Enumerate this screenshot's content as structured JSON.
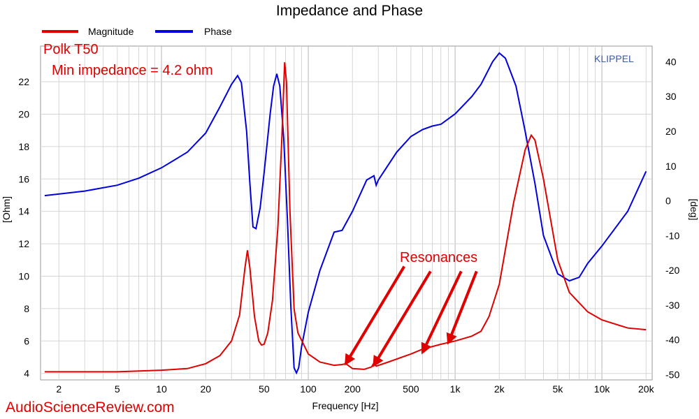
{
  "chart_data": {
    "type": "line",
    "title": "Impedance and Phase",
    "xlabel": "Frequency [Hz]",
    "ylabel_left": "[Ohm]",
    "ylabel_right": "[deg]",
    "x_scale": "log",
    "xlim": [
      1.5,
      22000
    ],
    "ylim_left": [
      3.6,
      24.2
    ],
    "ylim_right": [
      -51.5,
      44.5
    ],
    "grid": true,
    "legend_position": "top-left",
    "x_ticks": [
      {
        "value": 2,
        "label": "2"
      },
      {
        "value": 5,
        "label": "5"
      },
      {
        "value": 10,
        "label": "10"
      },
      {
        "value": 20,
        "label": "20"
      },
      {
        "value": 50,
        "label": "50"
      },
      {
        "value": 100,
        "label": "100"
      },
      {
        "value": 200,
        "label": "200"
      },
      {
        "value": 500,
        "label": "500"
      },
      {
        "value": 1000,
        "label": "1k"
      },
      {
        "value": 2000,
        "label": "2k"
      },
      {
        "value": 5000,
        "label": "5k"
      },
      {
        "value": 10000,
        "label": "10k"
      },
      {
        "value": 20000,
        "label": "20k"
      }
    ],
    "y_ticks_left": [
      {
        "value": 4,
        "label": "4"
      },
      {
        "value": 6,
        "label": "6"
      },
      {
        "value": 8,
        "label": "8"
      },
      {
        "value": 10,
        "label": "10"
      },
      {
        "value": 12,
        "label": "12"
      },
      {
        "value": 14,
        "label": "14"
      },
      {
        "value": 16,
        "label": "16"
      },
      {
        "value": 18,
        "label": "18"
      },
      {
        "value": 20,
        "label": "20"
      },
      {
        "value": 22,
        "label": "22"
      }
    ],
    "y_ticks_right": [
      {
        "value": 40,
        "label": "40"
      },
      {
        "value": 30,
        "label": "30"
      },
      {
        "value": 20,
        "label": "20"
      },
      {
        "value": 10,
        "label": "10"
      },
      {
        "value": 0,
        "label": "0"
      },
      {
        "value": -10,
        "label": "-10"
      },
      {
        "value": -20,
        "label": "-20"
      },
      {
        "value": -30,
        "label": "-30"
      },
      {
        "value": -40,
        "label": "-40"
      },
      {
        "value": -50,
        "label": "-50"
      }
    ],
    "series": [
      {
        "name": "Magnitude",
        "color": "#e00000",
        "axis": "left",
        "points": [
          [
            1.6,
            4.1
          ],
          [
            5,
            4.1
          ],
          [
            10,
            4.2
          ],
          [
            15,
            4.3
          ],
          [
            20,
            4.6
          ],
          [
            25,
            5.1
          ],
          [
            30,
            6.0
          ],
          [
            34,
            7.6
          ],
          [
            37,
            10.5
          ],
          [
            38.5,
            11.6
          ],
          [
            40,
            10.5
          ],
          [
            43,
            7.5
          ],
          [
            46,
            6.0
          ],
          [
            48,
            5.75
          ],
          [
            50,
            5.8
          ],
          [
            53,
            6.5
          ],
          [
            57,
            8.5
          ],
          [
            62,
            13.0
          ],
          [
            66,
            18.5
          ],
          [
            69,
            23.2
          ],
          [
            71,
            22.0
          ],
          [
            75,
            14.0
          ],
          [
            80,
            8.0
          ],
          [
            85,
            6.5
          ],
          [
            100,
            5.2
          ],
          [
            120,
            4.7
          ],
          [
            150,
            4.5
          ],
          [
            170,
            4.55
          ],
          [
            180,
            4.6
          ],
          [
            200,
            4.3
          ],
          [
            240,
            4.25
          ],
          [
            270,
            4.4
          ],
          [
            280,
            4.65
          ],
          [
            290,
            4.45
          ],
          [
            350,
            4.7
          ],
          [
            500,
            5.2
          ],
          [
            600,
            5.5
          ],
          [
            800,
            5.8
          ],
          [
            1000,
            6.0
          ],
          [
            1300,
            6.3
          ],
          [
            1500,
            6.6
          ],
          [
            1700,
            7.5
          ],
          [
            2000,
            9.5
          ],
          [
            2500,
            14.5
          ],
          [
            3000,
            17.8
          ],
          [
            3300,
            18.7
          ],
          [
            3500,
            18.4
          ],
          [
            4000,
            16.0
          ],
          [
            5000,
            11.0
          ],
          [
            6000,
            9.0
          ],
          [
            8000,
            7.8
          ],
          [
            10000,
            7.3
          ],
          [
            15000,
            6.8
          ],
          [
            20000,
            6.7
          ]
        ]
      },
      {
        "name": "Phase",
        "color": "#0000e0",
        "axis": "right",
        "points": [
          [
            1.6,
            1.5
          ],
          [
            3,
            2.8
          ],
          [
            5,
            4.5
          ],
          [
            7,
            6.5
          ],
          [
            10,
            9.5
          ],
          [
            15,
            14.0
          ],
          [
            20,
            19.5
          ],
          [
            25,
            27.0
          ],
          [
            30,
            33.5
          ],
          [
            33,
            36.0
          ],
          [
            35,
            34.0
          ],
          [
            38,
            20.0
          ],
          [
            40,
            5.0
          ],
          [
            42,
            -7.5
          ],
          [
            44,
            -8.0
          ],
          [
            47,
            -2.0
          ],
          [
            50,
            8.0
          ],
          [
            55,
            25.0
          ],
          [
            58,
            33.0
          ],
          [
            61,
            36.5
          ],
          [
            64,
            33.0
          ],
          [
            68,
            18.0
          ],
          [
            72,
            -5.0
          ],
          [
            76,
            -30.0
          ],
          [
            80,
            -48.0
          ],
          [
            83,
            -49.5
          ],
          [
            86,
            -48.0
          ],
          [
            90,
            -42.0
          ],
          [
            100,
            -32.0
          ],
          [
            120,
            -20.0
          ],
          [
            150,
            -9.0
          ],
          [
            170,
            -8.5
          ],
          [
            200,
            -3.0
          ],
          [
            250,
            6.0
          ],
          [
            280,
            7.2
          ],
          [
            290,
            4.5
          ],
          [
            300,
            6.0
          ],
          [
            400,
            14.0
          ],
          [
            500,
            18.5
          ],
          [
            600,
            20.5
          ],
          [
            700,
            21.5
          ],
          [
            800,
            22.0
          ],
          [
            1000,
            25.0
          ],
          [
            1300,
            30.0
          ],
          [
            1500,
            33.5
          ],
          [
            1800,
            40.0
          ],
          [
            2000,
            42.5
          ],
          [
            2200,
            41.0
          ],
          [
            2600,
            33.0
          ],
          [
            3000,
            20.0
          ],
          [
            3500,
            5.0
          ],
          [
            4000,
            -10.0
          ],
          [
            5000,
            -21.0
          ],
          [
            6000,
            -23.0
          ],
          [
            7000,
            -22.0
          ],
          [
            8000,
            -18.0
          ],
          [
            10000,
            -13.0
          ],
          [
            15000,
            -3.0
          ],
          [
            20000,
            8.5
          ]
        ]
      }
    ],
    "annotations": {
      "speaker": "Polk T50",
      "min_impedance": "Min impedance = 4.2 ohm",
      "resonances": "Resonances",
      "arrows": [
        {
          "from": [
            450,
            10.6
          ],
          "to": [
            180,
            4.6
          ]
        },
        {
          "from": [
            680,
            10.3
          ],
          "to": [
            280,
            4.5
          ]
        },
        {
          "from": [
            1100,
            10.3
          ],
          "to": [
            600,
            5.3
          ]
        },
        {
          "from": [
            1400,
            10.3
          ],
          "to": [
            900,
            5.9
          ]
        }
      ]
    },
    "brand": "KLIPPEL"
  },
  "watermark": "AudioScienceReview.com"
}
